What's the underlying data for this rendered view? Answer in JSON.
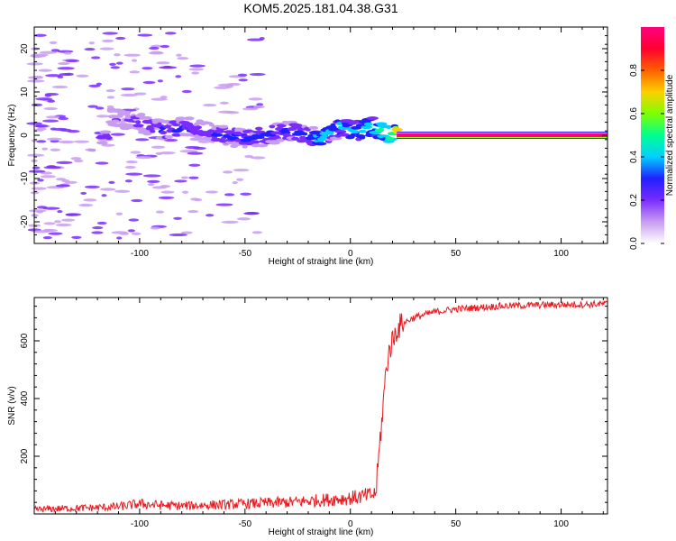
{
  "title": "KOM5.2025.181.04.38.G31",
  "chart_data": [
    {
      "type": "heatmap",
      "xlabel": "Height of straight line (km)",
      "ylabel": "Frequency (Hz)",
      "xlim": [
        -150,
        122
      ],
      "ylim": [
        -25,
        25
      ],
      "xticks": [
        -100,
        -50,
        0,
        50,
        100
      ],
      "xtick_labels": [
        "-100",
        "-50",
        "0",
        "50",
        "100"
      ],
      "yticks": [
        -20,
        -10,
        0,
        10,
        20
      ],
      "ytick_labels": [
        "-20",
        "-10",
        "0",
        "10",
        "20"
      ],
      "colorbar": {
        "label": "Normalized spectral amplitude",
        "range": [
          0,
          1
        ],
        "ticks": [
          0.0,
          0.2,
          0.4,
          0.6,
          0.8
        ],
        "tick_labels": [
          "0.0",
          "0.2",
          "0.4",
          "0.6",
          "0.8"
        ],
        "colors": [
          "#ffffff",
          "#c89cf0",
          "#7a2cff",
          "#2020ff",
          "#00d0ff",
          "#00ff90",
          "#80ff00",
          "#ffd000",
          "#ff6000",
          "#ff0030",
          "#ff0080"
        ]
      },
      "ridge": {
        "x": [
          -115,
          -100,
          -90,
          -80,
          -70,
          -60,
          -50,
          -40,
          -30,
          -20,
          -15,
          -10,
          -5,
          0,
          5,
          10,
          15,
          20,
          22,
          122
        ],
        "y": [
          4,
          3,
          1,
          2,
          1,
          0,
          -1,
          0,
          1,
          0,
          -1,
          1,
          2,
          1,
          1,
          2,
          1,
          0,
          0,
          0
        ],
        "amplitude": [
          0.15,
          0.25,
          0.3,
          0.3,
          0.25,
          0.3,
          0.3,
          0.3,
          0.3,
          0.35,
          0.4,
          0.35,
          0.4,
          0.4,
          0.45,
          0.45,
          0.5,
          0.55,
          0.95,
          0.95
        ]
      },
      "grid": false
    },
    {
      "type": "line",
      "xlabel": "Height of straight line (km)",
      "ylabel": "SNR (v/v)",
      "xlim": [
        -150,
        122
      ],
      "ylim": [
        0,
        750
      ],
      "xticks": [
        -100,
        -50,
        0,
        50,
        100
      ],
      "xtick_labels": [
        "-100",
        "-50",
        "0",
        "50",
        "100"
      ],
      "yticks": [
        200,
        400,
        600
      ],
      "ytick_labels": [
        "200",
        "400",
        "600"
      ],
      "color": "#e8191e",
      "series": [
        {
          "x": [
            -150,
            -140,
            -130,
            -120,
            -110,
            -100,
            -90,
            -80,
            -70,
            -60,
            -50,
            -40,
            -30,
            -20,
            -10,
            0,
            5,
            10,
            12,
            13,
            14,
            15,
            16,
            17,
            18,
            19,
            20,
            21,
            22,
            24,
            26,
            30,
            35,
            40,
            50,
            60,
            70,
            80,
            90,
            100,
            110,
            122
          ],
          "y": [
            15,
            18,
            20,
            22,
            25,
            35,
            30,
            28,
            30,
            32,
            35,
            38,
            40,
            45,
            50,
            55,
            60,
            65,
            70,
            150,
            250,
            330,
            420,
            500,
            550,
            580,
            600,
            620,
            640,
            655,
            665,
            680,
            690,
            700,
            710,
            715,
            720,
            722,
            724,
            725,
            726,
            728
          ]
        }
      ],
      "grid": false
    }
  ]
}
